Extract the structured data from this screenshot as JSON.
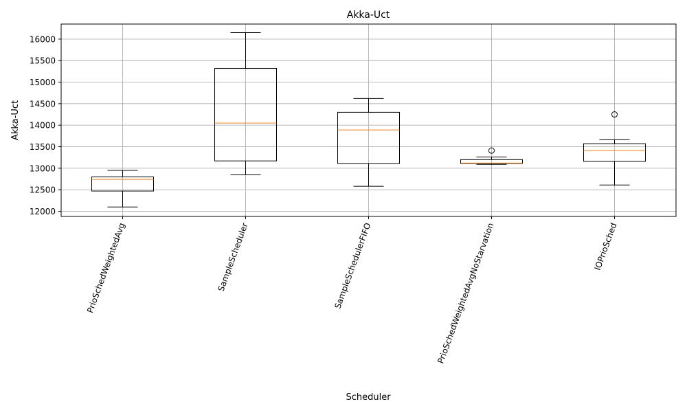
{
  "chart_data": {
    "type": "box",
    "title": "Akka-Uct",
    "xlabel": "Scheduler",
    "ylabel": "Akka-Uct",
    "categories": [
      "PrioSchedWeightedAvg",
      "SampleScheduler",
      "SampleSchedulerFIFO",
      "PrioSchedWeightedAvgNoStarvation",
      "IOPrioSched"
    ],
    "boxes": [
      {
        "whisker_low": 12100,
        "q1": 12470,
        "median": 12740,
        "q3": 12800,
        "whisker_high": 12950,
        "outliers": []
      },
      {
        "whisker_low": 12850,
        "q1": 13170,
        "median": 14050,
        "q3": 15320,
        "whisker_high": 16150,
        "outliers": []
      },
      {
        "whisker_low": 12580,
        "q1": 13110,
        "median": 13890,
        "q3": 14300,
        "whisker_high": 14620,
        "outliers": []
      },
      {
        "whisker_low": 13090,
        "q1": 13110,
        "median": 13120,
        "q3": 13200,
        "whisker_high": 13260,
        "outliers": [
          13410
        ]
      },
      {
        "whisker_low": 12610,
        "q1": 13160,
        "median": 13410,
        "q3": 13570,
        "whisker_high": 13660,
        "outliers": [
          14250
        ]
      }
    ],
    "yticks": [
      12000,
      12500,
      13000,
      13500,
      14000,
      14500,
      15000,
      15500,
      16000
    ],
    "ylim": [
      11880,
      16350
    ],
    "grid": true,
    "legend": "none",
    "colors": {
      "box": "#000000",
      "median": "#ff7f0e",
      "grid": "#b0b0b0"
    }
  }
}
